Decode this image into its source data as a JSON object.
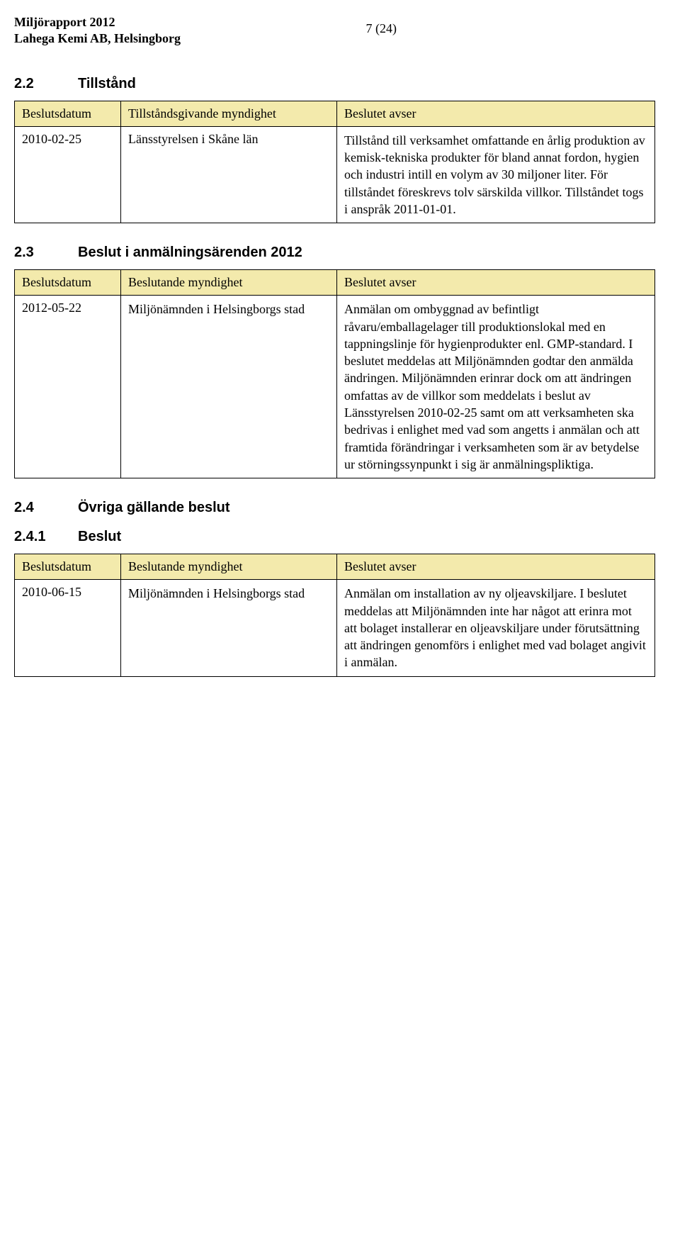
{
  "header": {
    "line1": "Miljörapport 2012",
    "line2": "Lahega Kemi AB, Helsingborg",
    "page": "7 (24)"
  },
  "colors": {
    "header_bg": "#f3eaac",
    "border": "#000000",
    "text": "#000000",
    "background": "#ffffff"
  },
  "section22": {
    "num": "2.2",
    "title": "Tillstånd",
    "cols": [
      "Beslutsdatum",
      "Tillståndsgivande myndighet",
      "Beslutet avser"
    ],
    "row": {
      "date": "2010-02-25",
      "authority": "Länsstyrelsen i Skåne län",
      "body": "Tillstånd till verksamhet omfattande en årlig produktion av kemisk-tekniska produkter för bland annat fordon, hygien och industri intill en volym av 30 miljoner liter. För tillståndet föreskrevs tolv särskilda villkor. Tillståndet togs i anspråk 2011-01-01."
    }
  },
  "section23": {
    "num": "2.3",
    "title": "Beslut i anmälningsärenden 2012",
    "cols": [
      "Beslutsdatum",
      "Beslutande myndighet",
      "Beslutet avser"
    ],
    "row": {
      "date": "2012-05-22",
      "authority": "Miljönämnden i Helsingborgs stad",
      "body": "Anmälan om ombyggnad av befintligt råvaru/emballagelager till produktionslokal med en tappningslinje för hygienprodukter enl. GMP-standard. I beslutet meddelas att Miljönämnden godtar den anmälda ändringen. Miljönämnden erinrar dock om att ändringen omfattas av de villkor som meddelats i beslut av Länsstyrelsen 2010-02-25 samt om att verksamheten ska bedrivas i enlighet med vad som angetts i anmälan och att framtida förändringar i verksamheten som är av betydelse ur störningssynpunkt i sig är anmälningspliktiga."
    }
  },
  "section24": {
    "num": "2.4",
    "title": "Övriga gällande beslut"
  },
  "section241": {
    "num": "2.4.1",
    "title": "Beslut",
    "cols": [
      "Beslutsdatum",
      "Beslutande myndighet",
      "Beslutet avser"
    ],
    "row": {
      "date": "2010-06-15",
      "authority": "Miljönämnden i Helsingborgs stad",
      "body": "Anmälan om installation av ny oljeavskiljare. I beslutet meddelas att Miljönämnden inte har något att erinra mot att bolaget installerar en oljeavskiljare under förutsättning att ändringen genomförs i enlighet med vad bolaget angivit i anmälan."
    }
  }
}
